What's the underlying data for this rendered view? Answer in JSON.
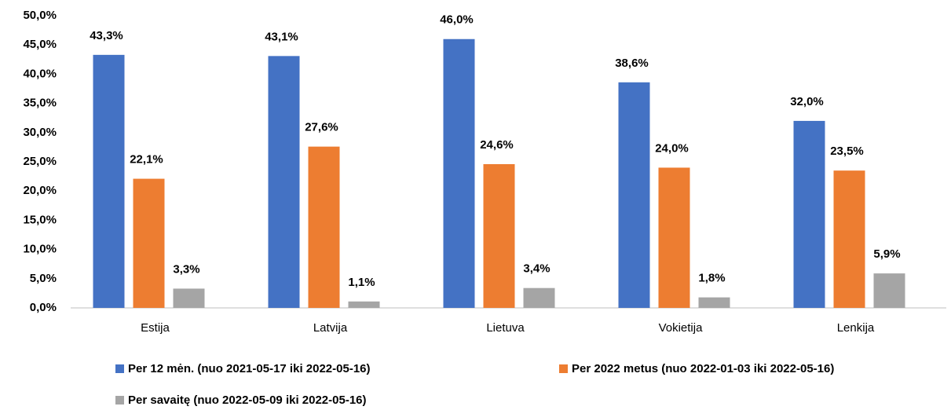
{
  "chart_data": {
    "type": "bar",
    "categories": [
      "Estija",
      "Latvija",
      "Lietuva",
      "Vokietija",
      "Lenkija"
    ],
    "series": [
      {
        "name": "Per 12 mėn. (nuo 2021-05-17 iki 2022-05-16)",
        "color": "#4472c4",
        "values": [
          43.3,
          43.1,
          46.0,
          38.6,
          32.0
        ],
        "value_labels": [
          "43,3%",
          "43,1%",
          "46,0%",
          "38,6%",
          "32,0%"
        ]
      },
      {
        "name": "Per 2022 metus (nuo 2022-01-03 iki 2022-05-16)",
        "color": "#ed7d31",
        "values": [
          22.1,
          27.6,
          24.6,
          24.0,
          23.5
        ],
        "value_labels": [
          "22,1%",
          "27,6%",
          "24,6%",
          "24,0%",
          "23,5%"
        ]
      },
      {
        "name": "Per savaitę (nuo 2022-05-09 iki 2022-05-16)",
        "color": "#a5a5a5",
        "values": [
          3.3,
          1.1,
          3.4,
          1.8,
          5.9
        ],
        "value_labels": [
          "3,3%",
          "1,1%",
          "3,4%",
          "1,8%",
          "5,9%"
        ]
      }
    ],
    "ylim": [
      0,
      50
    ],
    "yticks": [
      {
        "value": 0,
        "label": "0,0%"
      },
      {
        "value": 5,
        "label": "5,0%"
      },
      {
        "value": 10,
        "label": "10,0%"
      },
      {
        "value": 15,
        "label": "15,0%"
      },
      {
        "value": 20,
        "label": "20,0%"
      },
      {
        "value": 25,
        "label": "25,0%"
      },
      {
        "value": 30,
        "label": "30,0%"
      },
      {
        "value": 35,
        "label": "35,0%"
      },
      {
        "value": 40,
        "label": "40,0%"
      },
      {
        "value": 45,
        "label": "45,0%"
      },
      {
        "value": 50,
        "label": "50,0%"
      }
    ],
    "grid": false
  }
}
